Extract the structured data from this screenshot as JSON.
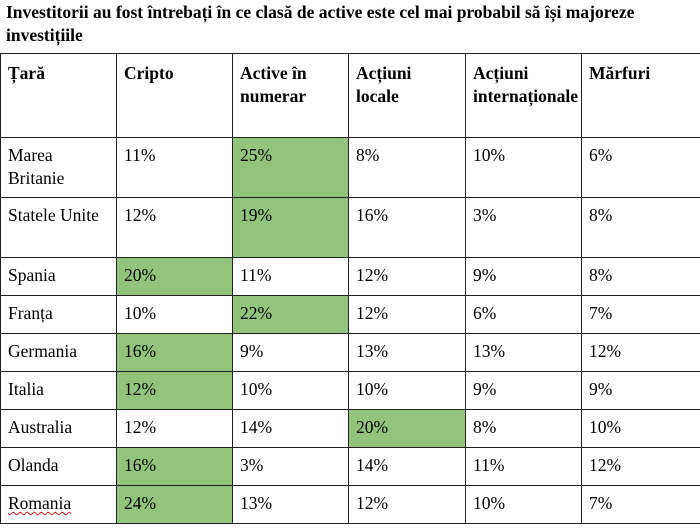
{
  "title": "Investitorii au fost întrebați în ce clasă de active este cel mai probabil să își majoreze investițiile",
  "colors": {
    "highlight": "#93c47d",
    "border": "#222222"
  },
  "table": {
    "headers": [
      "Țară",
      "Cripto",
      "Active în numerar",
      "Acțiuni locale",
      "Acțiuni internaționale",
      "Mărfuri"
    ],
    "rows": [
      {
        "country": "Marea Britanie",
        "cripto": "11%",
        "numerar": "25%",
        "locale": "8%",
        "internationale": "10%",
        "marfuri": "6%",
        "highlight": "numerar"
      },
      {
        "country": "Statele Unite",
        "cripto": "12%",
        "numerar": "19%",
        "locale": "16%",
        "internationale": "3%",
        "marfuri": "8%",
        "highlight": "numerar"
      },
      {
        "country": "Spania",
        "cripto": "20%",
        "numerar": "11%",
        "locale": "12%",
        "internationale": "9%",
        "marfuri": "8%",
        "highlight": "cripto"
      },
      {
        "country": "Franța",
        "cripto": "10%",
        "numerar": "22%",
        "locale": "12%",
        "internationale": "6%",
        "marfuri": "7%",
        "highlight": "numerar"
      },
      {
        "country": "Germania",
        "cripto": "16%",
        "numerar": "9%",
        "locale": "13%",
        "internationale": "13%",
        "marfuri": "12%",
        "highlight": "cripto"
      },
      {
        "country": "Italia",
        "cripto": "12%",
        "numerar": "10%",
        "locale": "10%",
        "internationale": "9%",
        "marfuri": "9%",
        "highlight": "cripto"
      },
      {
        "country": "Australia",
        "cripto": "12%",
        "numerar": "14%",
        "locale": "20%",
        "internationale": "8%",
        "marfuri": "10%",
        "highlight": "locale"
      },
      {
        "country": "Olanda",
        "cripto": "16%",
        "numerar": "3%",
        "locale": "14%",
        "internationale": "11%",
        "marfuri": "12%",
        "highlight": "cripto"
      },
      {
        "country": "Romania",
        "cripto": "24%",
        "numerar": "13%",
        "locale": "12%",
        "internationale": "10%",
        "marfuri": "7%",
        "highlight": "cripto"
      }
    ]
  }
}
